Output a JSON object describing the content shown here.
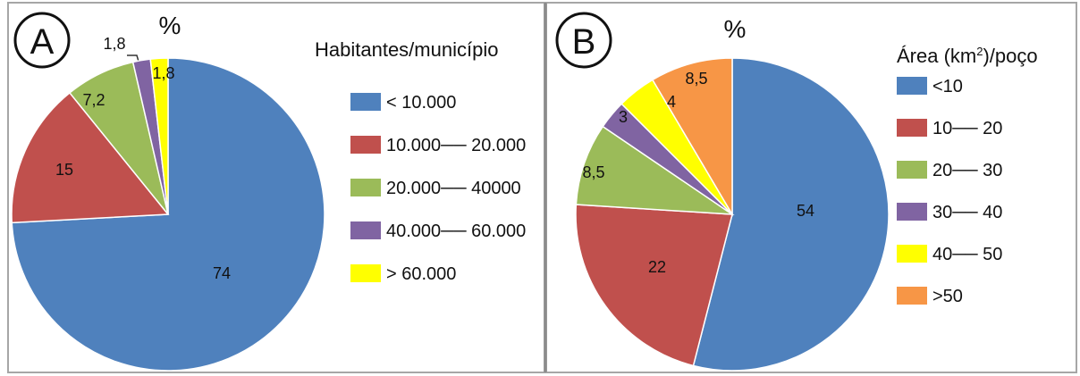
{
  "chart_data": [
    {
      "type": "pie",
      "panel_letter": "A",
      "title": "%",
      "legend_title": "Habitantes/município",
      "categories": [
        "< 10.000",
        "10.000── 20.000",
        "20.000── 40000",
        "40.000── 60.000",
        "> 60.000"
      ],
      "values": [
        74,
        15,
        7.2,
        1.8,
        1.8
      ],
      "data_labels": [
        "74",
        "15",
        "7,2",
        "1,8",
        "1,8"
      ],
      "colors": [
        "#4f81bd",
        "#c0504d",
        "#9bbb59",
        "#8064a2",
        "#ffff00"
      ],
      "legend_position": "right"
    },
    {
      "type": "pie",
      "panel_letter": "B",
      "title": "%",
      "legend_title_parts": [
        "Área (km",
        "2",
        ")/poço"
      ],
      "categories": [
        "<10",
        "10── 20",
        "20── 30",
        "30── 40",
        "40── 50",
        ">50"
      ],
      "values": [
        54,
        22,
        8.5,
        3,
        4,
        8.5
      ],
      "data_labels": [
        "54",
        "22",
        "8,5",
        "3",
        "4",
        "8,5"
      ],
      "colors": [
        "#4f81bd",
        "#c0504d",
        "#9bbb59",
        "#8064a2",
        "#ffff00",
        "#f79646"
      ],
      "legend_position": "right"
    }
  ]
}
